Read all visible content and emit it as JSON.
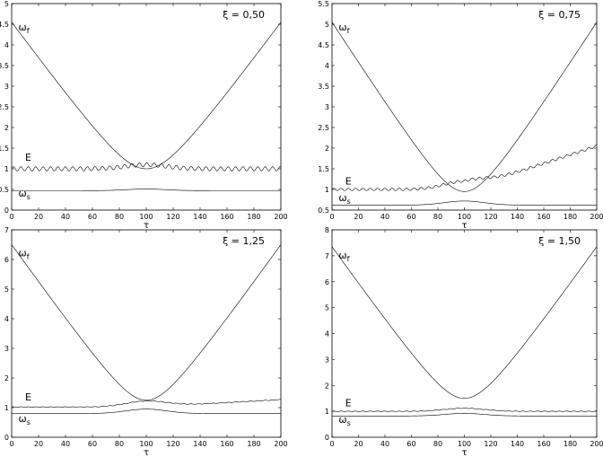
{
  "chart_data": [
    {
      "type": "line",
      "param_label": "ξ = 0,50",
      "xlabel": "τ",
      "xlim": [
        0,
        200
      ],
      "ylim": [
        0,
        5
      ],
      "xticks": [
        0,
        20,
        40,
        60,
        80,
        100,
        120,
        140,
        160,
        180,
        200
      ],
      "yticks": [
        0,
        0.5,
        1,
        1.5,
        2,
        2.5,
        3,
        3.5,
        4,
        4.5,
        5
      ],
      "ytick_labels": [
        "0",
        "0.5",
        "1",
        "1.5",
        "2",
        "2.5",
        "3",
        "3.5",
        "4",
        "4.5",
        "5"
      ],
      "curve_labels": [
        {
          "base": "ω",
          "sub": "f",
          "at": [
            5,
            4.35
          ]
        },
        {
          "base": "E",
          "sub": "",
          "at": [
            10,
            1.2
          ]
        },
        {
          "base": "ω",
          "sub": "s",
          "at": [
            5,
            0.33
          ]
        }
      ],
      "series": [
        {
          "id": "omega_f",
          "min": 1.0,
          "max": 4.55,
          "oscillation": 0
        },
        {
          "id": "E",
          "base": 1.0,
          "bump": 0.1,
          "growth": 0,
          "oscillation": 0.05,
          "period": 5.5
        },
        {
          "id": "omega_s",
          "base": 0.47,
          "bump": 0.04
        }
      ]
    },
    {
      "type": "line",
      "param_label": "ξ = 0,75",
      "xlabel": "τ",
      "xlim": [
        0,
        200
      ],
      "ylim": [
        0.5,
        5.5
      ],
      "xticks": [
        0,
        20,
        40,
        60,
        80,
        100,
        120,
        140,
        160,
        180,
        200
      ],
      "yticks": [
        0.5,
        1,
        1.5,
        2,
        2.5,
        3,
        3.5,
        4,
        4.5,
        5,
        5.5
      ],
      "ytick_labels": [
        "0.5",
        "1",
        "1.5",
        "2",
        "2.5",
        "3",
        "3.5",
        "4",
        "4.5",
        "5",
        "5.5"
      ],
      "curve_labels": [
        {
          "base": "ω",
          "sub": "f",
          "at": [
            5,
            4.85
          ]
        },
        {
          "base": "E",
          "sub": "",
          "at": [
            10,
            1.12
          ]
        },
        {
          "base": "ω",
          "sub": "s",
          "at": [
            5,
            0.72
          ]
        }
      ],
      "series": [
        {
          "id": "omega_f",
          "min": 0.95,
          "max": 5.05,
          "oscillation": 0
        },
        {
          "id": "E",
          "base": 1.0,
          "bump": 0.2,
          "growth": 1.05,
          "oscillation": 0.03,
          "period": 5.5
        },
        {
          "id": "omega_s",
          "base": 0.62,
          "bump": 0.1
        }
      ]
    },
    {
      "type": "line",
      "param_label": "ξ = 1,25",
      "xlabel": "τ",
      "xlim": [
        0,
        200
      ],
      "ylim": [
        0,
        7
      ],
      "xticks": [
        0,
        20,
        40,
        60,
        80,
        100,
        120,
        140,
        160,
        180,
        200
      ],
      "yticks": [
        0,
        1,
        2,
        3,
        4,
        5,
        6,
        7
      ],
      "ytick_labels": [
        "0",
        "1",
        "2",
        "3",
        "4",
        "5",
        "6",
        "7"
      ],
      "curve_labels": [
        {
          "base": "ω",
          "sub": "f",
          "at": [
            5,
            6.1
          ]
        },
        {
          "base": "E",
          "sub": "",
          "at": [
            10,
            1.25
          ]
        },
        {
          "base": "ω",
          "sub": "s",
          "at": [
            5,
            0.52
          ]
        }
      ],
      "series": [
        {
          "id": "omega_f",
          "min": 1.25,
          "max": 6.5,
          "oscillation": 0
        },
        {
          "id": "E",
          "base": 1.02,
          "bump": 0.2,
          "growth": 0.25,
          "oscillation": 0.01,
          "period": 5.5
        },
        {
          "id": "omega_s",
          "base": 0.8,
          "bump": 0.15
        }
      ]
    },
    {
      "type": "line",
      "param_label": "ξ = 1,50",
      "xlabel": "τ",
      "xlim": [
        0,
        200
      ],
      "ylim": [
        0,
        8
      ],
      "xticks": [
        0,
        20,
        40,
        60,
        80,
        100,
        120,
        140,
        160,
        180,
        200
      ],
      "yticks": [
        0,
        1,
        2,
        3,
        4,
        5,
        6,
        7,
        8
      ],
      "ytick_labels": [
        "0",
        "1",
        "2",
        "3",
        "4",
        "5",
        "6",
        "7",
        "8"
      ],
      "curve_labels": [
        {
          "base": "ω",
          "sub": "f",
          "at": [
            5,
            6.9
          ]
        },
        {
          "base": "E",
          "sub": "",
          "at": [
            10,
            1.2
          ]
        },
        {
          "base": "ω",
          "sub": "s",
          "at": [
            5,
            0.55
          ]
        }
      ],
      "series": [
        {
          "id": "omega_f",
          "min": 1.5,
          "max": 7.35,
          "oscillation": 0
        },
        {
          "id": "E",
          "base": 1.0,
          "bump": 0.12,
          "growth": 0,
          "oscillation": 0.01,
          "period": 5.5
        },
        {
          "id": "omega_s",
          "base": 0.82,
          "bump": 0.1
        }
      ]
    }
  ]
}
